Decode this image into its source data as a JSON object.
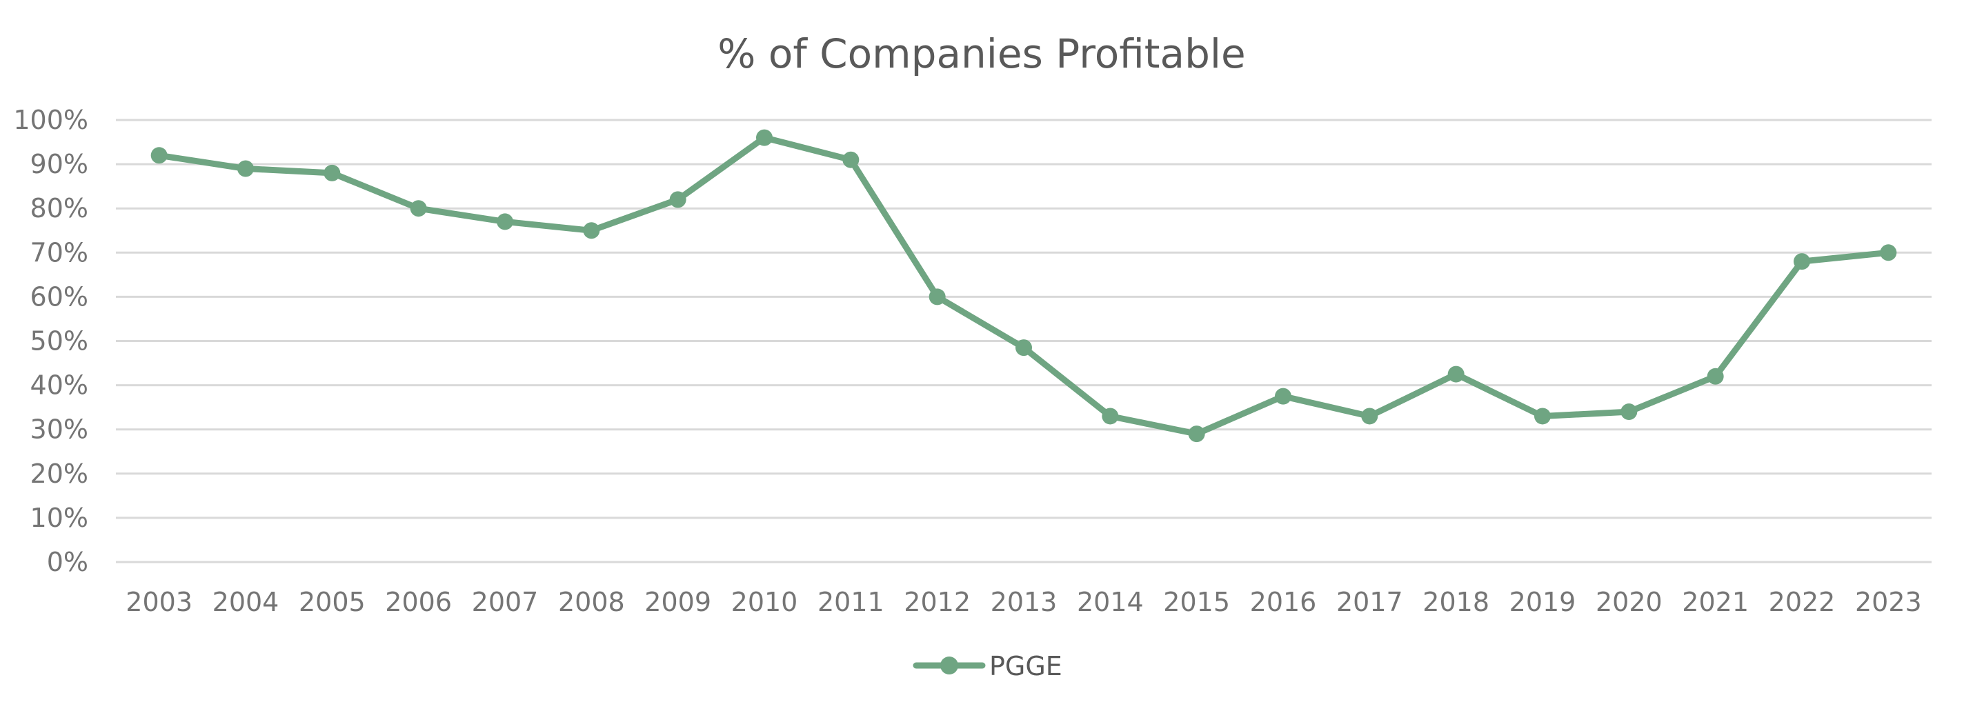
{
  "chart_data": {
    "type": "line",
    "title": "% of Companies Profitable",
    "xlabel": "",
    "ylabel": "",
    "categories": [
      "2003",
      "2004",
      "2005",
      "2006",
      "2007",
      "2008",
      "2009",
      "2010",
      "2011",
      "2012",
      "2013",
      "2014",
      "2015",
      "2016",
      "2017",
      "2018",
      "2019",
      "2020",
      "2021",
      "2022",
      "2023"
    ],
    "series": [
      {
        "name": "PGGE",
        "values": [
          92,
          89,
          88,
          80,
          77,
          75,
          82,
          96,
          91,
          60,
          48.5,
          33,
          29,
          37.5,
          33,
          42.5,
          33,
          34,
          42,
          68,
          70
        ],
        "color": "#6fa582"
      }
    ],
    "ylim": [
      0,
      100
    ],
    "yticks": [
      "0%",
      "10%",
      "20%",
      "30%",
      "40%",
      "50%",
      "60%",
      "70%",
      "80%",
      "90%",
      "100%"
    ],
    "grid": true,
    "legend_position": "bottom-center"
  }
}
